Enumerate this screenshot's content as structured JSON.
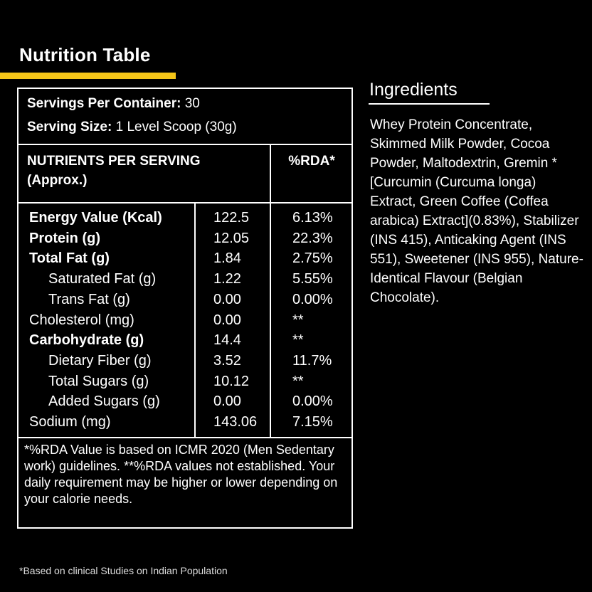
{
  "nutrition": {
    "title": "Nutrition Table",
    "servings_label": "Servings Per Container:",
    "servings_value": "30",
    "serving_size_label": "Serving Size:",
    "serving_size_value": "1 Level Scoop (30g)",
    "header_nutrients": "NUTRIENTS PER SERVING (Approx.)",
    "header_rda": "%RDA*",
    "rows": [
      {
        "name": "Energy Value (Kcal)",
        "value": "122.5",
        "rda": "6.13%"
      },
      {
        "name": "Protein (g)",
        "value": "12.05",
        "rda": "22.3%"
      },
      {
        "name": "Total Fat (g)",
        "value": "1.84",
        "rda": "2.75%"
      },
      {
        "name": "Saturated Fat (g)",
        "value": "1.22",
        "rda": "5.55%"
      },
      {
        "name": "Trans Fat (g)",
        "value": "0.00",
        "rda": "0.00%"
      },
      {
        "name": "Cholesterol (mg)",
        "value": "0.00",
        "rda": "**"
      },
      {
        "name": "Carbohydrate (g)",
        "value": "14.4",
        "rda": "**"
      },
      {
        "name": "Dietary Fiber (g)",
        "value": "3.52",
        "rda": "11.7%"
      },
      {
        "name": "Total Sugars (g)",
        "value": "10.12",
        "rda": "**"
      },
      {
        "name": "Added Sugars (g)",
        "value": "0.00",
        "rda": "0.00%"
      },
      {
        "name": "Sodium (mg)",
        "value": "143.06",
        "rda": "7.15%"
      }
    ],
    "footnote": "*%RDA Value is based on ICMR 2020 (Men Sedentary work) guidelines. **%RDA values not established. Your daily requirement may be higher or lower depending on your calorie needs."
  },
  "ingredients": {
    "title": "Ingredients",
    "text": "Whey Protein Concentrate, Skimmed Milk Powder, Cocoa Powder, Maltodextrin, Gremin * [Curcumin (Curcuma longa) Extract, Green Coffee (Coffea arabica) Extract](0.83%), Stabilizer (INS 415), Anticaking Agent (INS 551), Sweetener (INS 955), Nature-Identical Flavour (Belgian Chocolate)."
  },
  "bottom_note": "*Based on clinical Studies on Indian Population",
  "colors": {
    "accent": "#f5c518",
    "background": "#000000",
    "text": "#ffffff"
  }
}
